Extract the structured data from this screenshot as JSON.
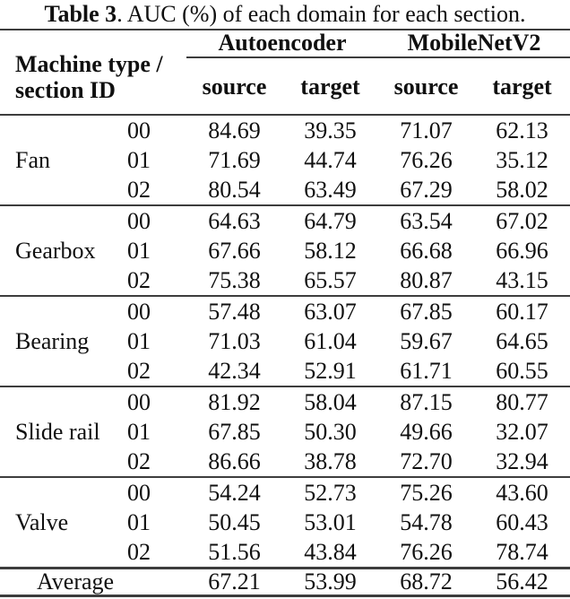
{
  "caption": {
    "label": "Table 3",
    "text": ". AUC (%) of each domain for each section."
  },
  "header": {
    "row_label_line1": "Machine type /",
    "row_label_line2": "section ID",
    "groups": [
      {
        "label": "Autoencoder"
      },
      {
        "label": "MobileNetV2"
      }
    ],
    "subcolumns": [
      "source",
      "target",
      "source",
      "target"
    ]
  },
  "body": {
    "groups": [
      {
        "machine": "Fan",
        "rows": [
          {
            "section": "00",
            "values": [
              "84.69",
              "39.35",
              "71.07",
              "62.13"
            ]
          },
          {
            "section": "01",
            "values": [
              "71.69",
              "44.74",
              "76.26",
              "35.12"
            ]
          },
          {
            "section": "02",
            "values": [
              "80.54",
              "63.49",
              "67.29",
              "58.02"
            ]
          }
        ]
      },
      {
        "machine": "Gearbox",
        "rows": [
          {
            "section": "00",
            "values": [
              "64.63",
              "64.79",
              "63.54",
              "67.02"
            ]
          },
          {
            "section": "01",
            "values": [
              "67.66",
              "58.12",
              "66.68",
              "66.96"
            ]
          },
          {
            "section": "02",
            "values": [
              "75.38",
              "65.57",
              "80.87",
              "43.15"
            ]
          }
        ]
      },
      {
        "machine": "Bearing",
        "rows": [
          {
            "section": "00",
            "values": [
              "57.48",
              "63.07",
              "67.85",
              "60.17"
            ]
          },
          {
            "section": "01",
            "values": [
              "71.03",
              "61.04",
              "59.67",
              "64.65"
            ]
          },
          {
            "section": "02",
            "values": [
              "42.34",
              "52.91",
              "61.71",
              "60.55"
            ]
          }
        ]
      },
      {
        "machine": "Slide rail",
        "rows": [
          {
            "section": "00",
            "values": [
              "81.92",
              "58.04",
              "87.15",
              "80.77"
            ]
          },
          {
            "section": "01",
            "values": [
              "67.85",
              "50.30",
              "49.66",
              "32.07"
            ]
          },
          {
            "section": "02",
            "values": [
              "86.66",
              "38.78",
              "72.70",
              "32.94"
            ]
          }
        ]
      },
      {
        "machine": "Valve",
        "rows": [
          {
            "section": "00",
            "values": [
              "54.24",
              "52.73",
              "75.26",
              "43.60"
            ]
          },
          {
            "section": "01",
            "values": [
              "50.45",
              "53.01",
              "54.78",
              "60.43"
            ]
          },
          {
            "section": "02",
            "values": [
              "51.56",
              "43.84",
              "76.26",
              "78.74"
            ]
          }
        ]
      }
    ],
    "average": {
      "label": "Average",
      "values": [
        "67.21",
        "53.99",
        "68.72",
        "56.42"
      ]
    }
  },
  "colors": {
    "background": "#ffffff",
    "text": "#101010",
    "rule": "#3d3d3d"
  }
}
